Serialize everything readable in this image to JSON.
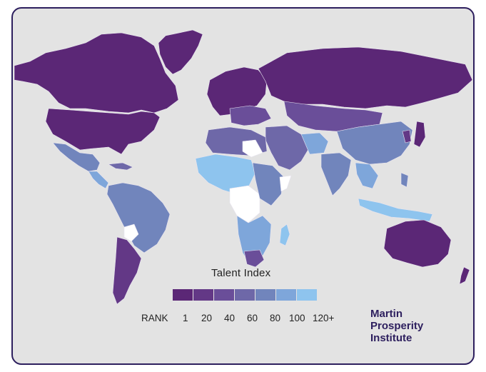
{
  "map": {
    "legend_title": "Talent Index",
    "rank_label": "RANK",
    "rank_ticks": [
      "1",
      "20",
      "40",
      "60",
      "80",
      "100",
      "120+"
    ],
    "legend_colors": [
      "#5b2776",
      "#633886",
      "#6a4e99",
      "#6e68a8",
      "#7185bc",
      "#7ea6da",
      "#8ec4ee"
    ],
    "palette": {
      "background": "#e3e3e3",
      "no_data": "#ffffff",
      "frame": "#2d1f5e"
    }
  },
  "logo": {
    "line1": "Martin",
    "line2": "Prosperity",
    "line3": "Institute"
  }
}
